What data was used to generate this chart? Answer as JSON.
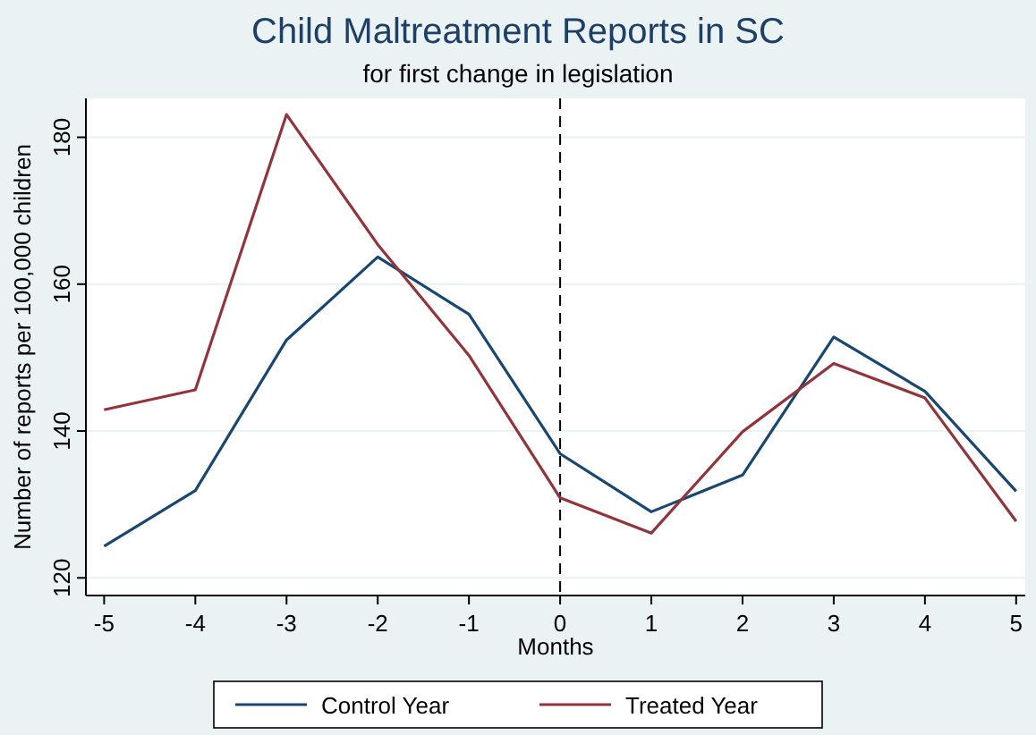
{
  "chart_data": {
    "type": "line",
    "title": "Child Maltreatment Reports in SC",
    "subtitle": "for first change in legislation",
    "xlabel": "Months",
    "ylabel": "Number of reports per 100,000 children",
    "x": [
      -5,
      -4,
      -3,
      -2,
      -1,
      0,
      1,
      2,
      3,
      4,
      5
    ],
    "series": [
      {
        "name": "Control Year",
        "color": "#1a476f",
        "values": [
          124.3,
          131.9,
          152.4,
          163.7,
          155.9,
          136.9,
          129.0,
          134.0,
          152.8,
          145.4,
          131.8
        ]
      },
      {
        "name": "Treated Year",
        "color": "#90353b",
        "values": [
          142.9,
          145.6,
          183.1,
          165.4,
          150.3,
          130.9,
          126.1,
          139.9,
          149.2,
          144.5,
          127.7
        ]
      }
    ],
    "xlim": [
      -5.2,
      5.1
    ],
    "xticks": [
      -5,
      -4,
      -3,
      -2,
      -1,
      0,
      1,
      2,
      3,
      4,
      5
    ],
    "ylim": [
      117.6,
      185.3
    ],
    "yticks": [
      120,
      140,
      160,
      180
    ],
    "ref_lines": [
      {
        "axis": "x",
        "value": 0,
        "color": "#000000",
        "line_style": "dashed"
      }
    ],
    "grid": "y",
    "legend": "bottom",
    "marker": "none",
    "line_style": "solid"
  }
}
